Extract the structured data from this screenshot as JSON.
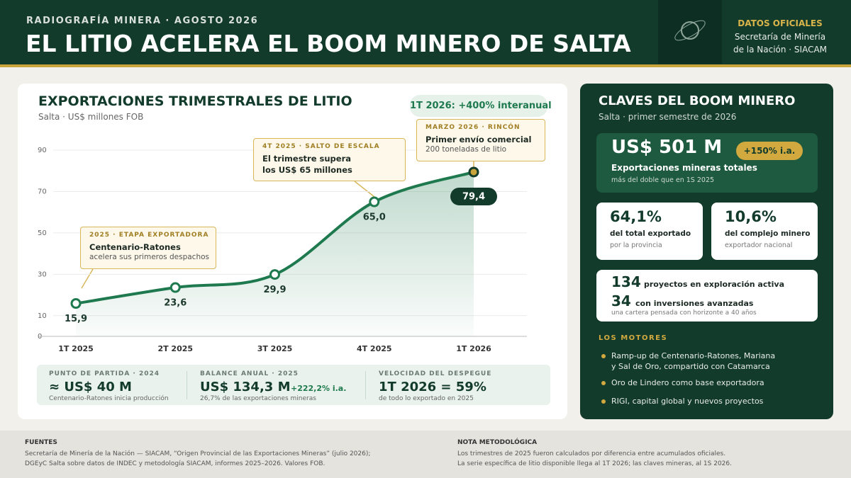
{
  "header": {
    "kicker": "RADIOGRAFÍA MINERA · AGOSTO 2026",
    "title": "EL LITIO ACELERA EL BOOM MINERO DE SALTA",
    "source_label": "DATOS OFICIALES",
    "source_lines": [
      "Secretaría de Minería",
      "de la Nación · SIACAM"
    ]
  },
  "chart_data": {
    "type": "line",
    "title": "EXPORTACIONES TRIMESTRALES DE LITIO",
    "subtitle": "Salta · US$ millones FOB",
    "badge": "1T 2026: +400% interanual",
    "categories": [
      "1T 2025",
      "2T 2025",
      "3T 2025",
      "4T 2025",
      "1T 2026"
    ],
    "values": [
      15.9,
      23.6,
      29.9,
      65.0,
      79.4
    ],
    "value_labels": [
      "15,9",
      "23,6",
      "29,9",
      "65,0",
      "79,4"
    ],
    "color": "#1e7a4e",
    "highlight_color": "#c9a43a",
    "ylim": [
      0,
      90
    ],
    "yticks": [
      0,
      10,
      30,
      50,
      70,
      90
    ],
    "grid": true,
    "annotations": [
      {
        "kicker": "2025 · ETAPA EXPORTADORA",
        "title": [
          "Centenario-Ratones"
        ],
        "text": "acelera sus primeros despachos"
      },
      {
        "kicker": "4T 2025 · SALTO DE ESCALA",
        "title": [
          "El trimestre supera",
          "los US$ 65 millones"
        ]
      },
      {
        "kicker": "MARZO 2026 · RINCÓN",
        "title": [
          "Primer envío comercial"
        ],
        "text": "200 toneladas de litio"
      }
    ]
  },
  "summary": [
    {
      "label": "PUNTO DE PARTIDA · 2024",
      "value": "≈ US$ 40 M",
      "note": "Centenario-Ratones inicia producción"
    },
    {
      "label": "BALANCE ANUAL · 2025",
      "value": "US$ 134,3 M",
      "extra": "+222,2% i.a.",
      "note": "26,7% de las exportaciones mineras"
    },
    {
      "label": "VELOCIDAD DEL DESPEGUE",
      "value": "1T 2026 = 59%",
      "note": "de todo lo exportado en 2025"
    }
  ],
  "panel": {
    "title": "CLAVES DEL BOOM MINERO",
    "subtitle": "Salta · primer semestre de 2026",
    "hero": {
      "value": "US$ 501 M",
      "badge": "+150% i.a.",
      "label": "Exportaciones mineras totales",
      "note": "más del doble que en 1S 2025"
    },
    "cards": [
      {
        "value": "64,1%",
        "label": "del total exportado",
        "note": "por la provincia"
      },
      {
        "value": "10,6%",
        "label": "del complejo minero",
        "note": "exportador nacional"
      }
    ],
    "projects": [
      {
        "value": "134",
        "label": "proyectos en exploración activa"
      },
      {
        "value": "34",
        "label": "con inversiones avanzadas"
      }
    ],
    "projects_note": "una cartera pensada con horizonte a 40 años",
    "motors_title": "LOS MOTORES",
    "motors": [
      [
        "Ramp-up de Centenario-Ratones, Mariana",
        "y Sal de Oro, compartido con Catamarca"
      ],
      [
        "Oro de Lindero como base exportadora"
      ],
      [
        "RIGI, capital global y nuevos proyectos"
      ]
    ]
  },
  "footer": {
    "sources_title": "FUENTES",
    "sources": [
      "Secretaría de Minería de la Nación — SIACAM, “Origen Provincial de las Exportaciones Mineras” (julio 2026);",
      "DGEyC Salta sobre datos de INDEC y metodología SIACAM, informes 2025–2026. Valores FOB."
    ],
    "note_title": "NOTA METODOLÓGICA",
    "notes": [
      "Los trimestres de 2025 fueron calculados por diferencia entre acumulados oficiales.",
      "La serie específica de litio disponible llega al 1T 2026; las claves mineras, al 1S 2026."
    ]
  }
}
